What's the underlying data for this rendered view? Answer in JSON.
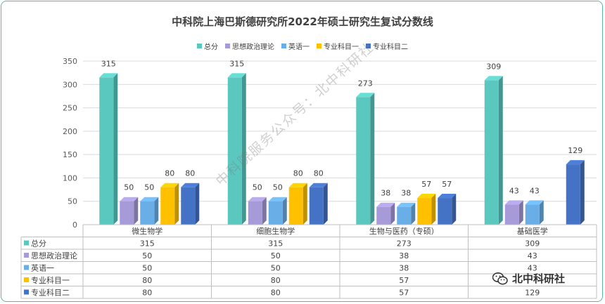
{
  "chart_data": {
    "type": "bar",
    "title": "中科院上海巴斯德研究所2022年硕士研究生复试分数线",
    "categories": [
      "微生物学",
      "细胞生物学",
      "生物与医药（专硕）",
      "基础医学"
    ],
    "series": [
      {
        "name": "总分",
        "color": "#5bc8c0",
        "values": [
          315,
          315,
          273,
          309
        ]
      },
      {
        "name": "思想政治理论",
        "color": "#a79ad8",
        "values": [
          50,
          50,
          38,
          43
        ]
      },
      {
        "name": "英语一",
        "color": "#6aaee8",
        "values": [
          50,
          50,
          38,
          43
        ]
      },
      {
        "name": "专业科目一",
        "color": "#ffc000",
        "values": [
          80,
          80,
          57,
          null
        ]
      },
      {
        "name": "专业科目二",
        "color": "#4472c4",
        "values": [
          80,
          80,
          57,
          129
        ]
      }
    ],
    "ylim": [
      0,
      350
    ],
    "yticks": [
      0,
      50,
      100,
      150,
      200,
      250,
      300,
      350
    ],
    "table_rows": [
      [
        "315",
        "315",
        "273",
        "309"
      ],
      [
        "50",
        "50",
        "38",
        "43"
      ],
      [
        "50",
        "50",
        "38",
        "43"
      ],
      [
        "80",
        "80",
        "57",
        ""
      ],
      [
        "80",
        "80",
        "57",
        "129"
      ]
    ]
  },
  "watermark": "中科院服务公众号：北中科研社",
  "brand": {
    "name": "北中科研社",
    "icon": "wechat-icon"
  }
}
